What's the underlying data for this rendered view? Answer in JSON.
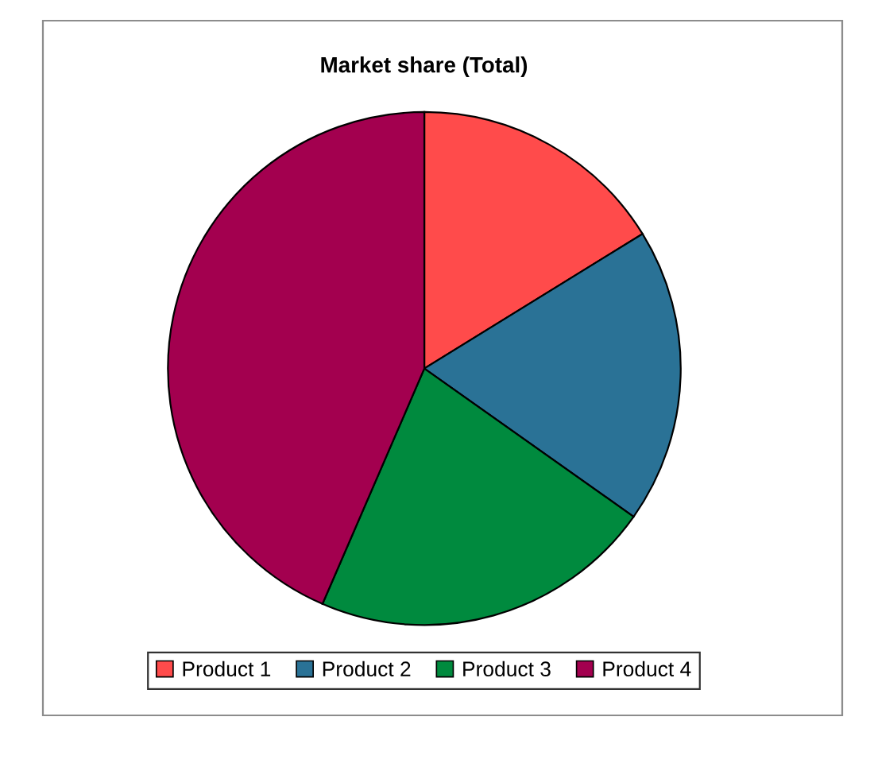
{
  "chart_data": {
    "type": "pie",
    "title": "Market share (Total)",
    "categories": [
      "Product 1",
      "Product 2",
      "Product 3",
      "Product 4"
    ],
    "values": [
      16.2,
      18.6,
      21.7,
      43.5
    ],
    "colors": [
      "#ff4b4b",
      "#2a7296",
      "#008a3e",
      "#a3004f"
    ],
    "legend": "bottom"
  }
}
